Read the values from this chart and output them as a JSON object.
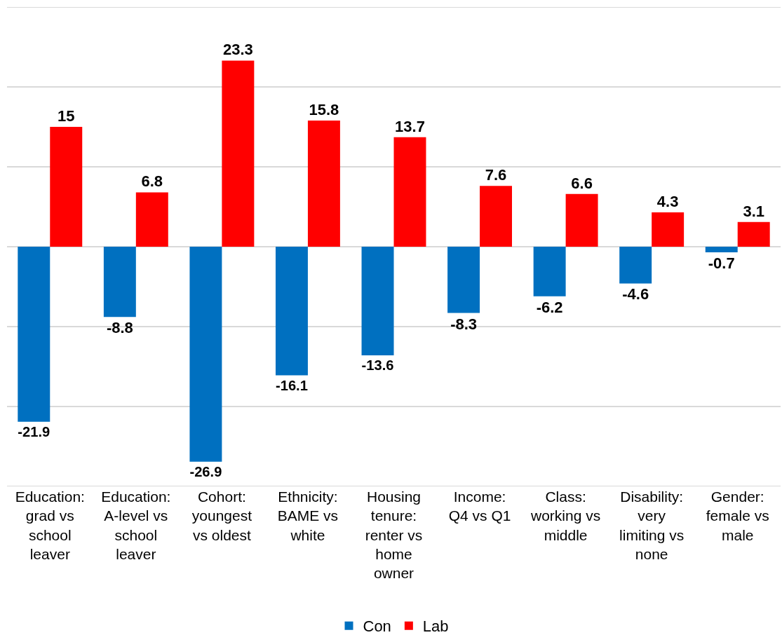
{
  "chart_data": {
    "type": "bar",
    "categories": [
      "Education: grad vs school leaver",
      "Education: A-level vs school leaver",
      "Cohort: youngest vs oldest",
      "Ethnicity: BAME vs white",
      "Housing tenure: renter vs home owner",
      "Income: Q4 vs Q1",
      "Class: working vs middle",
      "Disability: very limiting vs none",
      "Gender: female vs male"
    ],
    "series": [
      {
        "name": "Con",
        "color": "#0070c0",
        "values": [
          -21.9,
          -8.8,
          -26.9,
          -16.1,
          -13.6,
          -8.3,
          -6.2,
          -4.6,
          -0.7
        ]
      },
      {
        "name": "Lab",
        "color": "#ff0000",
        "values": [
          15,
          6.8,
          23.3,
          15.8,
          13.7,
          7.6,
          6.6,
          4.3,
          3.1
        ]
      }
    ],
    "ylim": [
      -30,
      30
    ],
    "yticks": [
      {
        "value": -30,
        "label": null
      },
      {
        "value": -20,
        "label": null
      },
      {
        "value": -10,
        "label": null
      },
      {
        "value": 0,
        "label": null
      },
      {
        "value": 10,
        "label": null
      },
      {
        "value": 20,
        "label": null
      },
      {
        "value": 30,
        "label": null
      }
    ],
    "grid": "y",
    "legend": "bottom",
    "data_labels": true,
    "tick_labels": "x"
  }
}
